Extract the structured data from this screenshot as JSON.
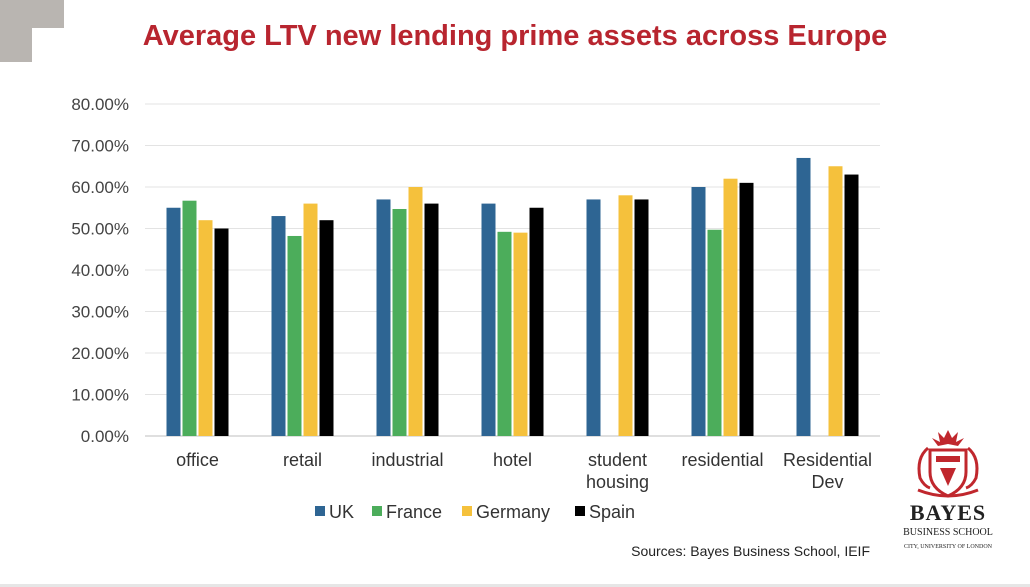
{
  "title": "Average LTV new lending prime assets across Europe",
  "sources": "Sources: Bayes Business School, IEIF",
  "logo": {
    "name": "BAYES",
    "subtitle": "BUSINESS SCHOOL",
    "subtitle2": "CITY, UNIVERSITY OF LONDON"
  },
  "colors": {
    "UK": "#2e6593",
    "France": "#4cad5b",
    "Germany": "#f5c13c",
    "Spain": "#000000",
    "title": "#b8252f"
  },
  "chart_data": {
    "type": "bar",
    "title": "Average LTV new lending prime assets across Europe",
    "categories": [
      [
        "office"
      ],
      [
        "retail"
      ],
      [
        "industrial"
      ],
      [
        "hotel"
      ],
      [
        "student",
        "housing"
      ],
      [
        "residential"
      ],
      [
        "Residential",
        "Dev"
      ]
    ],
    "series": [
      {
        "name": "UK",
        "color": "#2e6593",
        "values": [
          55,
          53,
          57,
          56,
          57,
          60,
          67
        ]
      },
      {
        "name": "France",
        "color": "#4cad5b",
        "values": [
          56.7,
          48.2,
          54.7,
          49.2,
          null,
          49.7,
          null
        ]
      },
      {
        "name": "Germany",
        "color": "#f5c13c",
        "values": [
          52,
          56,
          60,
          49,
          58,
          62,
          65
        ]
      },
      {
        "name": "Spain",
        "color": "#000000",
        "values": [
          50,
          52,
          56,
          55,
          57,
          61,
          63
        ]
      }
    ],
    "yticks": [
      "0.00%",
      "10.00%",
      "20.00%",
      "30.00%",
      "40.00%",
      "50.00%",
      "60.00%",
      "70.00%",
      "80.00%"
    ],
    "ylim": [
      0,
      80
    ],
    "grid": true,
    "legend": "bottom"
  }
}
